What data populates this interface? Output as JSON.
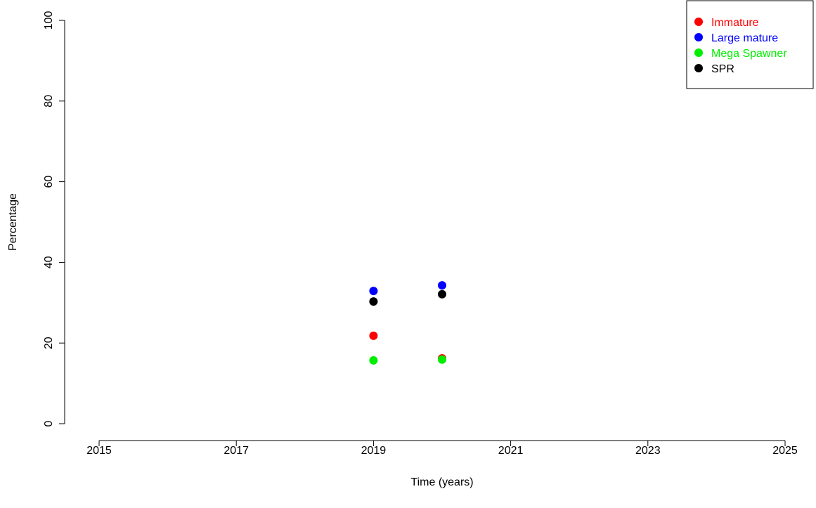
{
  "chart_data": {
    "type": "scatter",
    "title": "",
    "xlabel": "Time (years)",
    "ylabel": "Percentage",
    "xlim": [
      2015,
      2025
    ],
    "ylim": [
      0,
      100
    ],
    "xticks": [
      2015,
      2017,
      2019,
      2021,
      2023,
      2025
    ],
    "yticks": [
      0,
      20,
      40,
      60,
      80,
      100
    ],
    "grid": false,
    "legend_position": "top-right",
    "series": [
      {
        "name": "Immature",
        "color": "#ff0000",
        "points": [
          {
            "x": 2019,
            "y": 21.8
          },
          {
            "x": 2020,
            "y": 16.2
          }
        ]
      },
      {
        "name": "Large mature",
        "color": "#0000ff",
        "points": [
          {
            "x": 2019,
            "y": 32.9
          },
          {
            "x": 2020,
            "y": 34.3
          }
        ]
      },
      {
        "name": "Mega Spawner",
        "color": "#00ee00",
        "points": [
          {
            "x": 2019,
            "y": 15.7
          },
          {
            "x": 2020,
            "y": 15.9
          }
        ]
      },
      {
        "name": "SPR",
        "color": "#000000",
        "points": [
          {
            "x": 2019,
            "y": 30.3
          },
          {
            "x": 2020,
            "y": 32.1
          }
        ]
      }
    ]
  }
}
